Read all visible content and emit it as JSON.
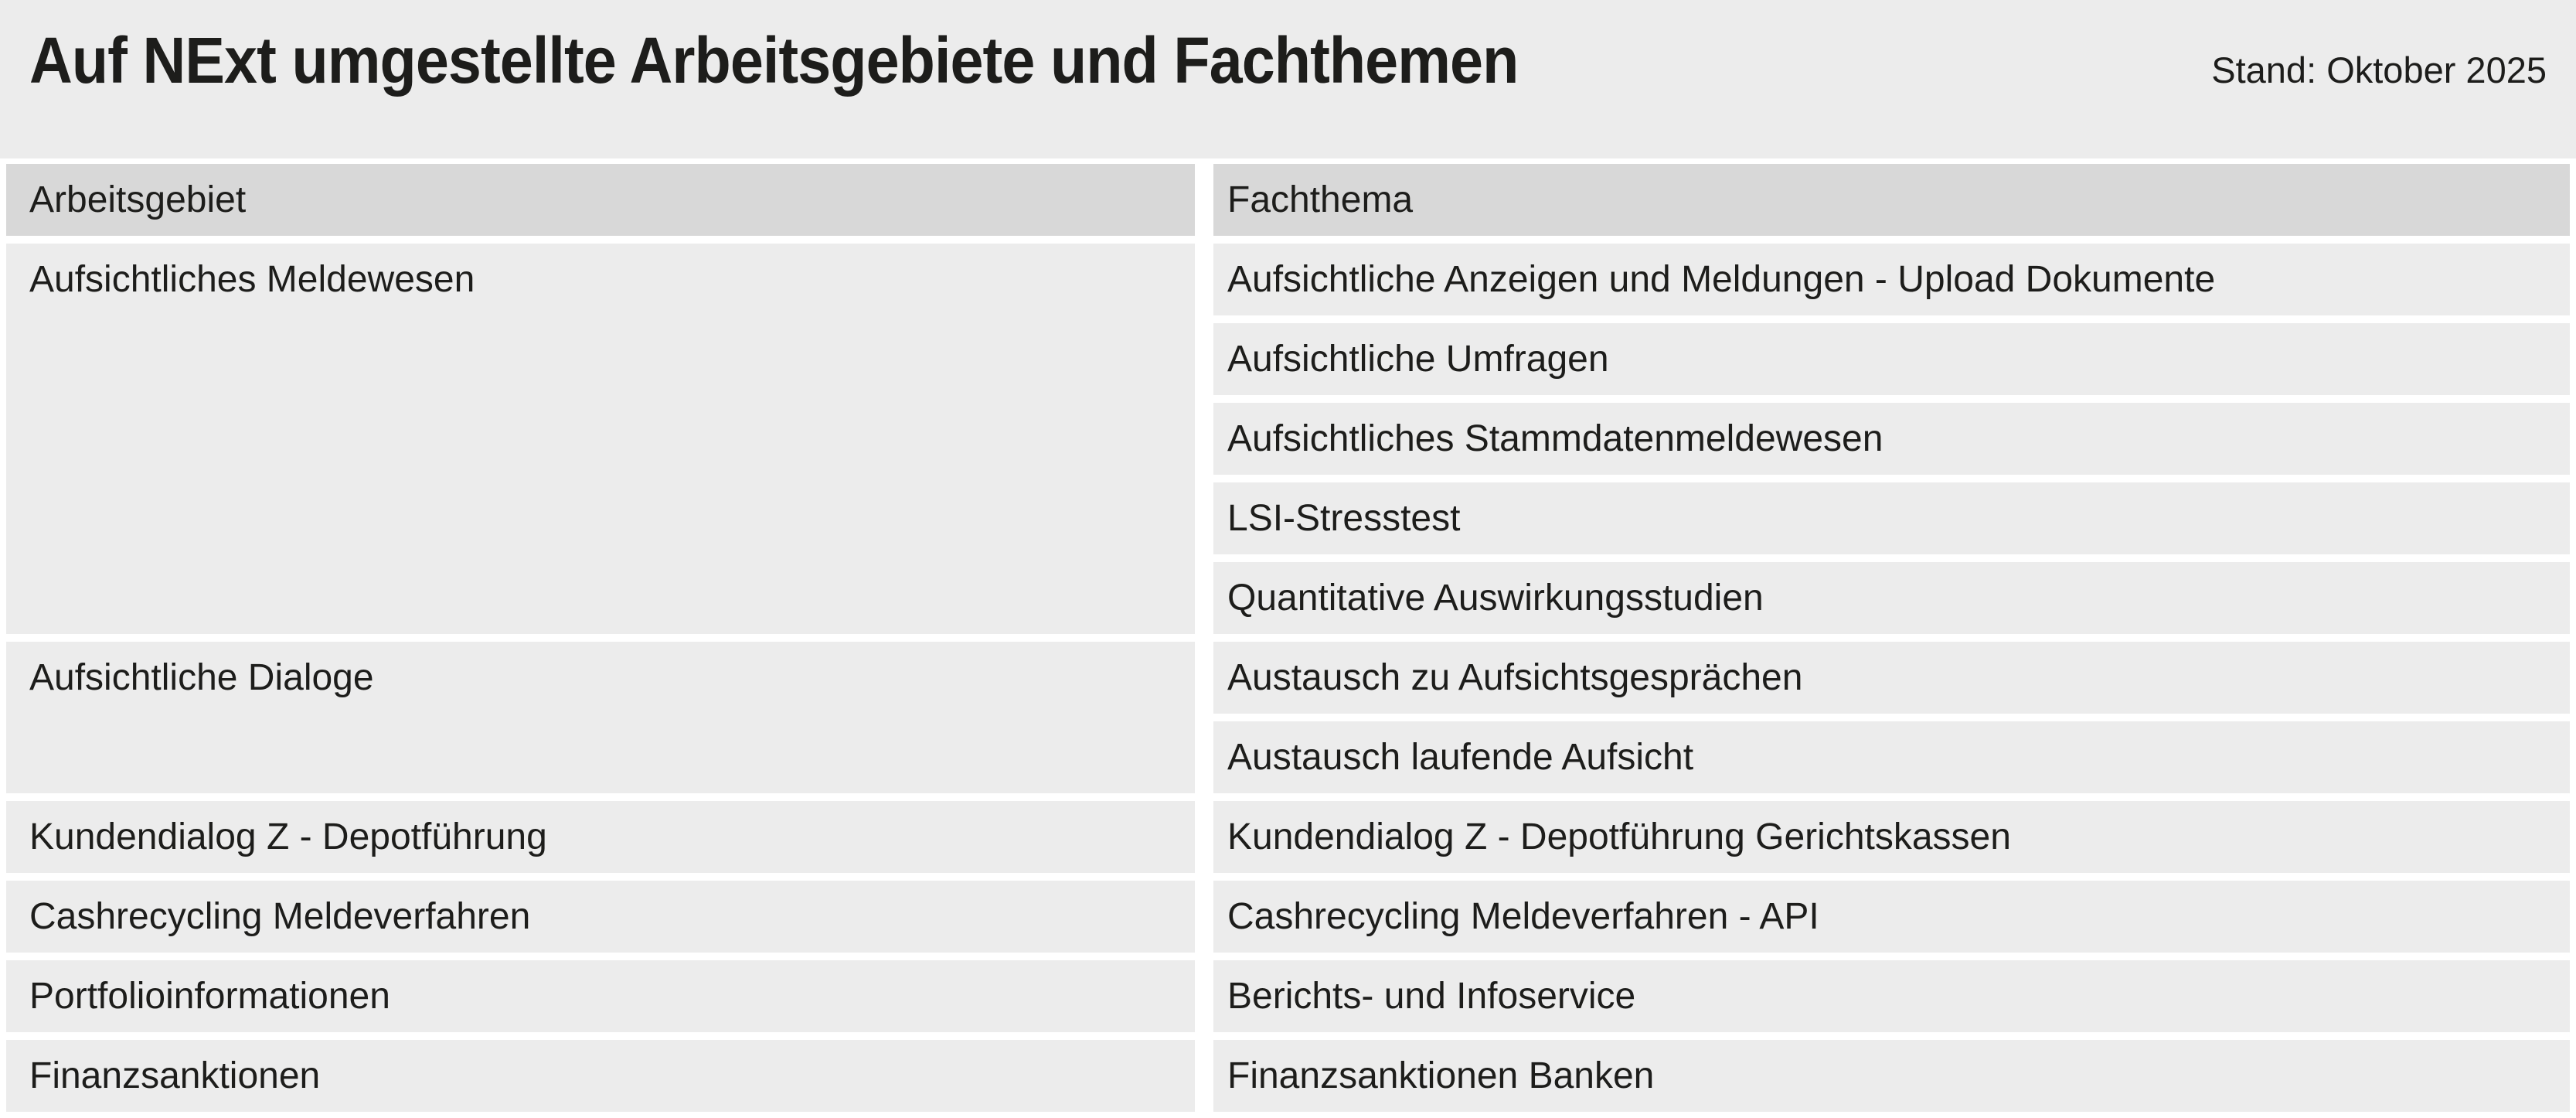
{
  "header": {
    "title": "Auf NExt umgestellte Arbeitsgebiete und Fachthemen",
    "stand": "Stand: Oktober 2025"
  },
  "table": {
    "columns": {
      "arbeitsgebiet": "Arbeitsgebiet",
      "fachthema": "Fachthema"
    },
    "groups": [
      {
        "arbeitsgebiet": "Aufsichtliches Meldewesen",
        "fachthemen": [
          "Aufsichtliche Anzeigen und Meldungen - Upload Dokumente",
          "Aufsichtliche Umfragen",
          "Aufsichtliches Stammdatenmeldewesen",
          "LSI-Stresstest",
          "Quantitative Auswirkungsstudien"
        ]
      },
      {
        "arbeitsgebiet": "Aufsichtliche Dialoge",
        "fachthemen": [
          "Austausch zu Aufsichtsgesprächen",
          "Austausch laufende Aufsicht"
        ]
      },
      {
        "arbeitsgebiet": "Kundendialog Z - Depotführung",
        "fachthemen": [
          "Kundendialog Z - Depotführung Gerichtskassen"
        ]
      },
      {
        "arbeitsgebiet": "Cashrecycling Meldeverfahren",
        "fachthemen": [
          "Cashrecycling Meldeverfahren - API"
        ]
      },
      {
        "arbeitsgebiet": "Portfolioinformationen",
        "fachthemen": [
          "Berichts- und Infoservice"
        ]
      },
      {
        "arbeitsgebiet": "Finanzsanktionen",
        "fachthemen": [
          "Finanzsanktionen Banken"
        ]
      }
    ]
  },
  "colors": {
    "band_background": "#ececec",
    "cell_background": "#ececec",
    "header_cell_background": "#d8d8d8",
    "gap_background": "#ffffff",
    "text": "#1d1d1b"
  }
}
